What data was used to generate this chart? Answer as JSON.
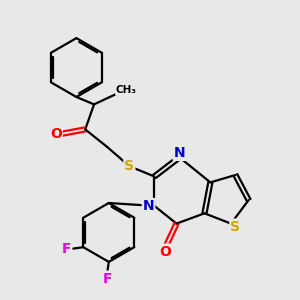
{
  "background_color": "#e8e8e8",
  "bond_color": "#000000",
  "atom_colors": {
    "N": "#0000cc",
    "O": "#ff0000",
    "S": "#ccaa00",
    "F": "#ee00ee",
    "C": "#000000"
  },
  "figsize": [
    3.0,
    3.0
  ],
  "dpi": 100
}
